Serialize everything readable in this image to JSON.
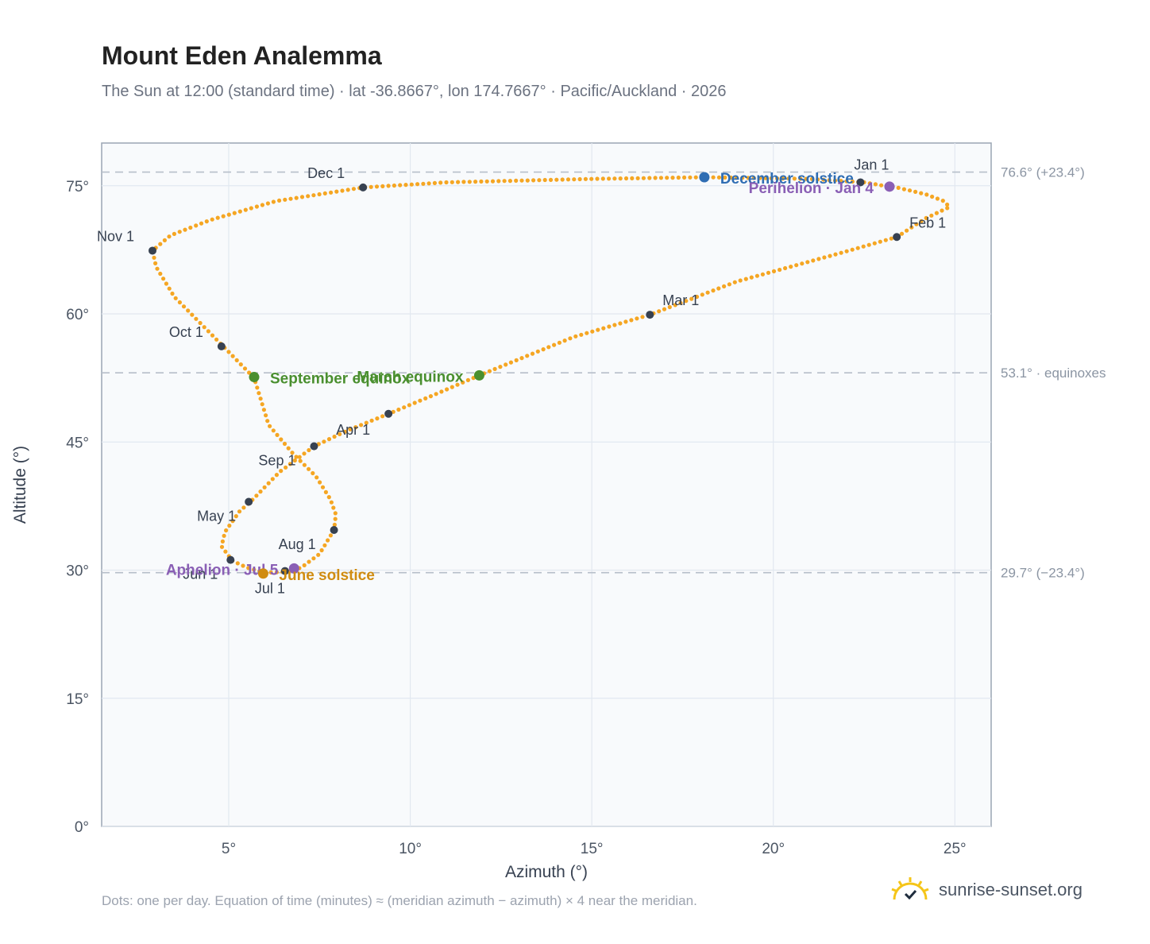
{
  "page": {
    "title": "Mount Eden Analemma",
    "subtitle": "The Sun at 12:00 (standard time) · lat -36.8667°, lon 174.7667° · Pacific/Auckland · 2026",
    "footnote": "Dots: one per day. Equation of time (minutes) ≈ (meridian azimuth − azimuth) × 4 near the meridian.",
    "brand": "sunrise-sunset.org",
    "brand_icon": "sun-check-icon"
  },
  "chart_data": {
    "type": "scatter",
    "title": "Mount Eden Analemma",
    "xlabel": "Azimuth (°)",
    "ylabel": "Altitude (°)",
    "xlim": [
      1.5,
      26
    ],
    "ylim": [
      0,
      80
    ],
    "xticks": [
      5,
      10,
      15,
      20,
      25
    ],
    "xtick_labels": [
      "5°",
      "10°",
      "15°",
      "20°",
      "25°"
    ],
    "yticks": [
      0,
      15,
      30,
      45,
      60,
      75
    ],
    "ytick_labels": [
      "0°",
      "15°",
      "30°",
      "45°",
      "60°",
      "75°"
    ],
    "grid": true,
    "colors": {
      "dots": "#f5a623",
      "month": "#374151",
      "equinox": "#4a8f2f",
      "december": "#2f6db3",
      "june": "#d08c10",
      "apsis": "#8a5fb5",
      "refline": "#b6bec9"
    },
    "series": [
      {
        "name": "",
        "points": [
          [
            22.5,
            75.4
          ],
          [
            23.1,
            74.96
          ],
          [
            23.3,
            74.9
          ],
          [
            23.7,
            74.5
          ],
          [
            24.2,
            74.0
          ],
          [
            24.7,
            73.2
          ],
          [
            24.85,
            72.5
          ],
          [
            24.2,
            71.2
          ],
          [
            23.4,
            69.0
          ],
          [
            22.0,
            67.3
          ],
          [
            19.0,
            63.8
          ],
          [
            16.6,
            59.9
          ],
          [
            14.5,
            57.3
          ],
          [
            11.9,
            52.8
          ],
          [
            10.7,
            50.6
          ],
          [
            9.4,
            48.3
          ],
          [
            8.3,
            46.4
          ],
          [
            7.35,
            44.5
          ],
          [
            6.4,
            41.5
          ],
          [
            5.6,
            38.0
          ],
          [
            5.3,
            36.9
          ],
          [
            4.9,
            34.5
          ],
          [
            4.8,
            32.8
          ],
          [
            5.1,
            31.1
          ],
          [
            5.5,
            30.3
          ],
          [
            6.0,
            29.7
          ],
          [
            6.6,
            29.8
          ],
          [
            7.0,
            30.3
          ],
          [
            7.5,
            31.9
          ],
          [
            7.9,
            34.7
          ],
          [
            7.95,
            36.5
          ],
          [
            7.8,
            38.3
          ],
          [
            7.4,
            41.0
          ],
          [
            6.8,
            43.5
          ],
          [
            6.1,
            47.0
          ],
          [
            5.7,
            52.5
          ],
          [
            4.85,
            56.2
          ],
          [
            3.5,
            62.0
          ],
          [
            3.0,
            65.5
          ],
          [
            2.9,
            67.4
          ],
          [
            3.4,
            69.2
          ],
          [
            4.5,
            71.0
          ],
          [
            6.3,
            73.2
          ],
          [
            8.7,
            74.8
          ],
          [
            11.0,
            75.4
          ],
          [
            15.0,
            75.8
          ],
          [
            18.1,
            76.0
          ],
          [
            21.0,
            75.8
          ],
          [
            22.5,
            75.4
          ]
        ]
      }
    ],
    "months": [
      {
        "label": "Jan 1",
        "x": 22.4,
        "y": 75.4
      },
      {
        "label": "Feb 1",
        "x": 23.4,
        "y": 69.0
      },
      {
        "label": "Mar 1",
        "x": 16.6,
        "y": 59.9
      },
      {
        "label": "Apr 1",
        "x": 9.4,
        "y": 48.3
      },
      {
        "label": "May 1",
        "x": 5.55,
        "y": 38.0
      },
      {
        "label": "Jun 1",
        "x": 5.05,
        "y": 31.2
      },
      {
        "label": "Jul 1",
        "x": 6.55,
        "y": 29.9
      },
      {
        "label": "Aug 1",
        "x": 7.9,
        "y": 34.7
      },
      {
        "label": "Sep 1",
        "x": 7.35,
        "y": 44.5
      },
      {
        "label": "Oct 1",
        "x": 4.8,
        "y": 56.2
      },
      {
        "label": "Nov 1",
        "x": 2.9,
        "y": 67.4
      },
      {
        "label": "Dec 1",
        "x": 8.7,
        "y": 74.8
      }
    ],
    "events": [
      {
        "label": "December solstice",
        "x": 18.1,
        "y": 76.0,
        "kind": "december"
      },
      {
        "label": "Perihelion · Jan 4",
        "x": 23.2,
        "y": 74.9,
        "kind": "apsis"
      },
      {
        "label": "March equinox",
        "x": 11.9,
        "y": 52.8,
        "kind": "equinox"
      },
      {
        "label": "September equinox",
        "x": 5.7,
        "y": 52.6,
        "kind": "equinox"
      },
      {
        "label": "Aphelion · Jul 5",
        "x": 6.8,
        "y": 30.2,
        "kind": "apsis"
      },
      {
        "label": "June solstice",
        "x": 5.95,
        "y": 29.6,
        "kind": "june"
      }
    ],
    "reference_lines": [
      {
        "y": 76.6,
        "label": "76.6° (+23.4°)"
      },
      {
        "y": 53.1,
        "label": "53.1° · equinoxes"
      },
      {
        "y": 29.7,
        "label": "29.7° (−23.4°)"
      }
    ]
  }
}
